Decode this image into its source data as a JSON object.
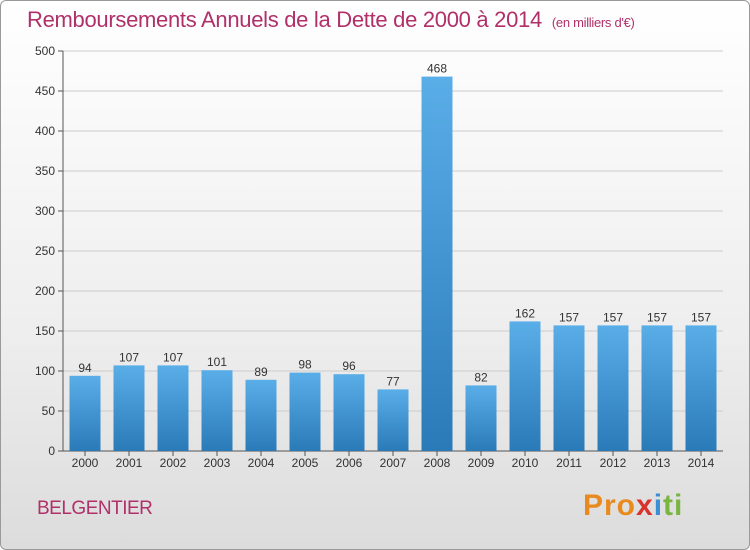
{
  "header": {
    "title": "Remboursements Annuels de la Dette de 2000 à 2014",
    "unit": "(en milliers d'€)"
  },
  "footer": {
    "town": "BELGENTIER",
    "logo_parts": [
      "Pro",
      "x",
      "i",
      "ti"
    ]
  },
  "colors": {
    "title": "#b0306a",
    "bar_light": "#5aaee8",
    "bar_dark": "#2a7ab8",
    "grid": "#cccccc"
  },
  "chart_data": {
    "type": "bar",
    "categories": [
      "2000",
      "2001",
      "2002",
      "2003",
      "2004",
      "2005",
      "2006",
      "2007",
      "2008",
      "2009",
      "2010",
      "2011",
      "2012",
      "2013",
      "2014"
    ],
    "values": [
      94,
      107,
      107,
      101,
      89,
      98,
      96,
      77,
      468,
      82,
      162,
      157,
      157,
      157,
      157
    ],
    "ylim": [
      0,
      500
    ],
    "yticks": [
      0,
      50,
      100,
      150,
      200,
      250,
      300,
      350,
      400,
      450,
      500
    ],
    "grid": true,
    "data_labels": true
  }
}
